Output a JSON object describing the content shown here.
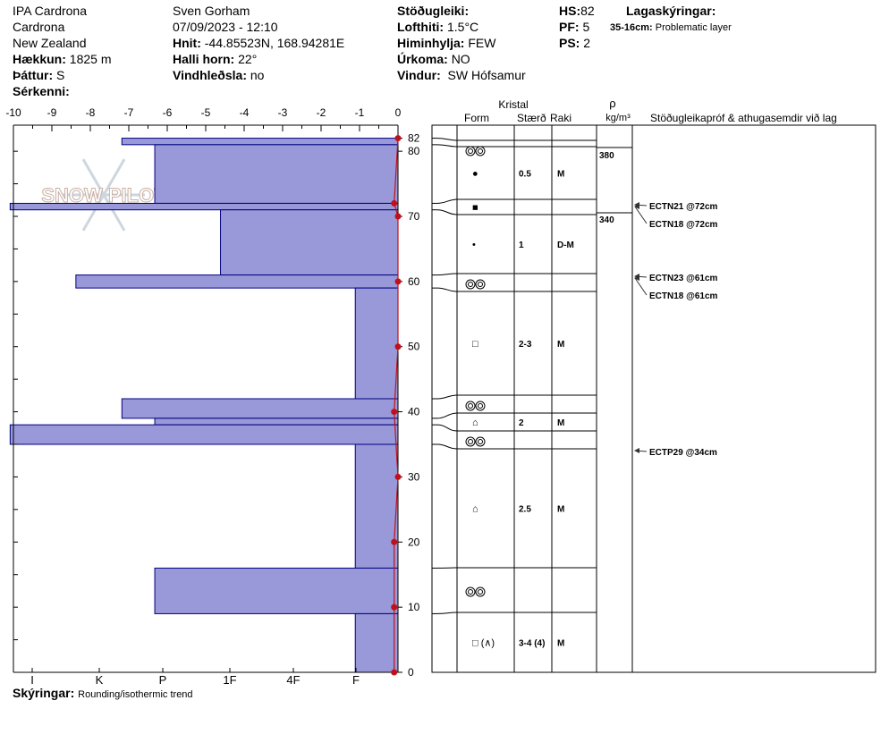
{
  "header": {
    "site": "IPA Cardrona",
    "location": "Cardrona",
    "country": "New Zealand",
    "elevation_label": "Hækkun:",
    "elevation": "1825 m",
    "aspect_label": "Þáttur:",
    "aspect": "S",
    "features_label": "Sérkenni:",
    "observer": "Sven Gorham",
    "datetime": "07/09/2023 - 12:10",
    "coords_label": "Hnit:",
    "coords": "-44.85523N, 168.94281E",
    "slope_label": "Halli horn:",
    "slope": "22°",
    "wind_loading_label": "Vindhleðsla:",
    "wind_loading": "no",
    "stability_label": "Stöðugleiki:",
    "air_temp_label": "Lofthiti:",
    "air_temp": "1.5°C",
    "sky_label": "Himinhylja:",
    "sky": "FEW",
    "precip_label": "Úrkoma:",
    "precip": "NO",
    "wind_label": "Vindur:",
    "wind": "SW Hófsamur",
    "hs_label": "HS:",
    "hs": "82",
    "pf_label": "PF:",
    "pf": "5",
    "ps_label": "PS:",
    "ps": "2",
    "layer_notes_label": "Lagaskýringar:",
    "layer_note_range": "35-16cm:",
    "layer_note_text": "Problematic layer"
  },
  "footer": {
    "legend_label": "Skýringar:",
    "legend_text": "Rounding/isothermic trend"
  },
  "watermark": "SNOW PILOT",
  "colors": {
    "hardness_fill": "#9999d9",
    "hardness_stroke": "#000080",
    "temp": "#c0101a",
    "watermark": "#c8d2dc"
  },
  "chart_data": {
    "type": "bar",
    "orientation": "horizontal",
    "title": "",
    "y_range": [
      0,
      84
    ],
    "y_ticks": [
      "0",
      "10",
      "20",
      "30",
      "40",
      "50",
      "60",
      "70",
      "80",
      "82"
    ],
    "temp_axis": {
      "range": [
        -10,
        0
      ],
      "ticks": [
        "-10",
        "-9",
        "-8",
        "-7",
        "-6",
        "-5",
        "-4",
        "-3",
        "-2",
        "-1",
        "0"
      ]
    },
    "hardness_axis": {
      "ticks": [
        "I",
        "K",
        "P",
        "1F",
        "4F",
        "F"
      ]
    },
    "hardness_layers": [
      {
        "top": 82,
        "bottom": 81,
        "hardness_units": 4.2
      },
      {
        "top": 81,
        "bottom": 72,
        "hardness_units": 3.7
      },
      {
        "top": 72,
        "bottom": 71,
        "hardness_units": 5.9
      },
      {
        "top": 71,
        "bottom": 61,
        "hardness_units": 2.7
      },
      {
        "top": 61,
        "bottom": 59,
        "hardness_units": 4.9
      },
      {
        "top": 59,
        "bottom": 42,
        "hardness_units": 0.65
      },
      {
        "top": 42,
        "bottom": 39,
        "hardness_units": 4.2
      },
      {
        "top": 39,
        "bottom": 38,
        "hardness_units": 3.7
      },
      {
        "top": 38,
        "bottom": 35,
        "hardness_units": 5.9
      },
      {
        "top": 35,
        "bottom": 16,
        "hardness_units": 0.65
      },
      {
        "top": 16,
        "bottom": 9,
        "hardness_units": 3.7
      },
      {
        "top": 9,
        "bottom": 0,
        "hardness_units": 0.65
      }
    ],
    "temperature_profile": [
      {
        "depth": 82,
        "temp": 0
      },
      {
        "depth": 72,
        "temp": -0.1
      },
      {
        "depth": 70,
        "temp": 0
      },
      {
        "depth": 60,
        "temp": 0
      },
      {
        "depth": 50,
        "temp": 0
      },
      {
        "depth": 40,
        "temp": -0.1
      },
      {
        "depth": 30,
        "temp": 0
      },
      {
        "depth": 20,
        "temp": -0.1
      },
      {
        "depth": 10,
        "temp": -0.1
      },
      {
        "depth": 0,
        "temp": -0.1
      }
    ]
  },
  "table": {
    "crystal_header": "Kristal",
    "form_header": "Form",
    "size_header": "Stærð",
    "moisture_header": "Raki",
    "density_symbol": "ρ",
    "density_unit": "kg/m³",
    "tests_header": "Stöðugleikapróf & athugasemdir við lag",
    "layers": [
      {
        "top": 82,
        "bottom": 81,
        "form": "",
        "size": "",
        "moisture": ""
      },
      {
        "top": 81,
        "bottom": 72,
        "form": "●",
        "size": "0.5",
        "moisture": "M"
      },
      {
        "top": 72,
        "bottom": 71,
        "form": "■",
        "size": "",
        "moisture": ""
      },
      {
        "top": 71,
        "bottom": 61,
        "form": "•",
        "size": "1",
        "moisture": "D-M"
      },
      {
        "top": 61,
        "bottom": 59,
        "form": "",
        "size": "",
        "moisture": ""
      },
      {
        "top": 59,
        "bottom": 42,
        "form": "□",
        "size": "2-3",
        "moisture": "M"
      },
      {
        "top": 42,
        "bottom": 39,
        "form": "",
        "size": "",
        "moisture": ""
      },
      {
        "top": 39,
        "bottom": 38,
        "form": "⌂",
        "size": "2",
        "moisture": "M"
      },
      {
        "top": 38,
        "bottom": 35,
        "form": "",
        "size": "",
        "moisture": ""
      },
      {
        "top": 35,
        "bottom": 16,
        "form": "⌂",
        "size": "2.5",
        "moisture": "M"
      },
      {
        "top": 16,
        "bottom": 9,
        "form": "",
        "size": "",
        "moisture": ""
      },
      {
        "top": 9,
        "bottom": 0,
        "form": "□ (∧)",
        "size": "3-4 (4)",
        "moisture": "M"
      }
    ],
    "rounded_grain_layers": [
      82,
      60,
      40.5,
      36.5,
      12.5
    ],
    "densities": [
      {
        "top": 81,
        "bottom": 72,
        "value": "380"
      },
      {
        "top": 71,
        "bottom": 61,
        "value": "340"
      }
    ],
    "tests": [
      {
        "depth": 72,
        "text": "ECTN21 @72cm"
      },
      {
        "depth": 72,
        "text": "ECTN18 @72cm"
      },
      {
        "depth": 61,
        "text": "ECTN23 @61cm"
      },
      {
        "depth": 61,
        "text": "ECTN18 @61cm"
      },
      {
        "depth": 34,
        "text": "ECTP29 @34cm"
      }
    ]
  }
}
